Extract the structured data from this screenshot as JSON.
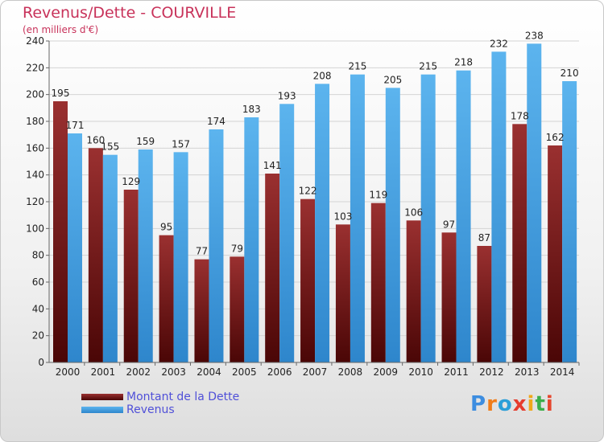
{
  "title": "Revenus/Dette - COURVILLE",
  "subtitle": "(en milliers d'€)",
  "legend": [
    {
      "label": "Montant de la Dette",
      "color": "#7a1d1d"
    },
    {
      "label": "Revenus",
      "color": "#4fa8e6"
    }
  ],
  "logo": {
    "text": "Proxiti",
    "letters": [
      {
        "ch": "P",
        "color": "#3c8de0"
      },
      {
        "ch": "r",
        "color": "#f07d1a"
      },
      {
        "ch": "o",
        "color": "#2c9fd8"
      },
      {
        "ch": "x",
        "color": "#e63c2e"
      },
      {
        "ch": "i",
        "color": "#f0a81a"
      },
      {
        "ch": "t",
        "color": "#3cae4a"
      },
      {
        "ch": "i",
        "color": "#e6462d"
      }
    ]
  },
  "chart_data": {
    "type": "bar",
    "categories": [
      "2000",
      "2001",
      "2002",
      "2003",
      "2004",
      "2005",
      "2006",
      "2007",
      "2008",
      "2009",
      "2010",
      "2011",
      "2012",
      "2013",
      "2014"
    ],
    "series": [
      {
        "name": "Montant de la Dette",
        "color": "#7a1d1d",
        "values": [
          195,
          160,
          129,
          95,
          77,
          79,
          141,
          122,
          103,
          119,
          106,
          97,
          87,
          178,
          162
        ]
      },
      {
        "name": "Revenus",
        "color": "#4fa8e6",
        "values": [
          171,
          155,
          159,
          157,
          174,
          183,
          193,
          208,
          215,
          205,
          215,
          218,
          232,
          238,
          210
        ]
      }
    ],
    "ylim": [
      0,
      240
    ],
    "yticks": [
      0,
      20,
      40,
      60,
      80,
      100,
      120,
      140,
      160,
      180,
      200,
      220,
      240
    ],
    "grid": true,
    "legend_position": "bottom-left"
  }
}
